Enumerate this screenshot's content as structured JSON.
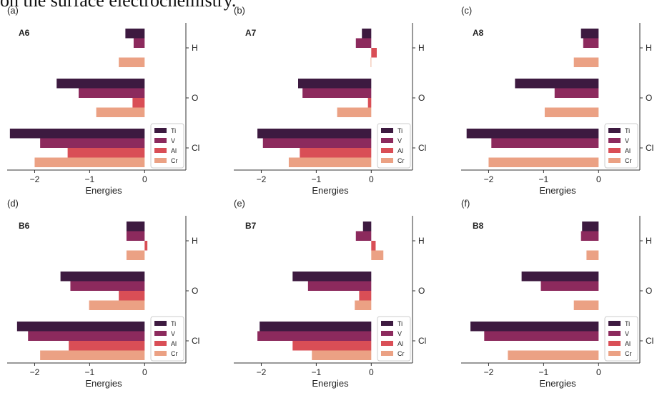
{
  "top_text": "on the surface electrochemistry.",
  "series_colors": {
    "Ti": "#3d1a40",
    "V": "#8c2a5d",
    "Al": "#d94e56",
    "Cr": "#eba184"
  },
  "chart_data": [
    {
      "type": "bar",
      "orientation": "horizontal",
      "panel_label": "(a)",
      "title": "A6",
      "xlabel": "Energies",
      "xlim": [
        -2.5,
        0.75
      ],
      "xticks": [
        "−2",
        "−1",
        "0"
      ],
      "categories": [
        "H",
        "O",
        "Cl"
      ],
      "series": [
        {
          "name": "Ti",
          "values": [
            -0.35,
            -1.6,
            -2.45
          ]
        },
        {
          "name": "V",
          "values": [
            -0.2,
            -1.2,
            -1.9
          ]
        },
        {
          "name": "Al",
          "values": [
            0.0,
            -0.22,
            -1.4
          ]
        },
        {
          "name": "Cr",
          "values": [
            -0.47,
            -0.88,
            -2.0
          ]
        }
      ],
      "legend": "lower-right"
    },
    {
      "type": "bar",
      "orientation": "horizontal",
      "panel_label": "(b)",
      "title": "A7",
      "xlabel": "Energies",
      "xlim": [
        -2.5,
        0.75
      ],
      "xticks": [
        "−2",
        "−1",
        "0"
      ],
      "categories": [
        "H",
        "O",
        "Cl"
      ],
      "series": [
        {
          "name": "Ti",
          "values": [
            -0.17,
            -1.33,
            -2.07
          ]
        },
        {
          "name": "V",
          "values": [
            -0.28,
            -1.25,
            -1.97
          ]
        },
        {
          "name": "Al",
          "values": [
            0.1,
            -0.06,
            -1.3
          ]
        },
        {
          "name": "Cr",
          "values": [
            -0.01,
            -0.62,
            -1.5
          ]
        }
      ],
      "legend": "lower-right"
    },
    {
      "type": "bar",
      "orientation": "horizontal",
      "panel_label": "(c)",
      "title": "A8",
      "xlabel": "Energies",
      "xlim": [
        -2.5,
        0.75
      ],
      "xticks": [
        "−2",
        "−1",
        "0"
      ],
      "categories": [
        "H",
        "O",
        "Cl"
      ],
      "series": [
        {
          "name": "Ti",
          "values": [
            -0.32,
            -1.52,
            -2.4
          ]
        },
        {
          "name": "V",
          "values": [
            -0.28,
            -0.8,
            -1.95
          ]
        },
        {
          "name": "Al",
          "values": [
            0.0,
            0.0,
            0.0
          ]
        },
        {
          "name": "Cr",
          "values": [
            -0.45,
            -0.98,
            -2.0
          ]
        }
      ],
      "legend": "lower-right"
    },
    {
      "type": "bar",
      "orientation": "horizontal",
      "panel_label": "(d)",
      "title": "B6",
      "xlabel": "Energies",
      "xlim": [
        -2.5,
        0.75
      ],
      "xticks": [
        "−2",
        "−1",
        "0"
      ],
      "categories": [
        "H",
        "O",
        "Cl"
      ],
      "series": [
        {
          "name": "Ti",
          "values": [
            -0.33,
            -1.53,
            -2.32
          ]
        },
        {
          "name": "V",
          "values": [
            -0.33,
            -1.35,
            -2.12
          ]
        },
        {
          "name": "Al",
          "values": [
            0.05,
            -0.47,
            -1.38
          ]
        },
        {
          "name": "Cr",
          "values": [
            -0.33,
            -1.01,
            -1.9
          ]
        }
      ],
      "legend": "lower-right"
    },
    {
      "type": "bar",
      "orientation": "horizontal",
      "panel_label": "(e)",
      "title": "B7",
      "xlabel": "Energies",
      "xlim": [
        -2.5,
        0.75
      ],
      "xticks": [
        "−2",
        "−1",
        "0"
      ],
      "categories": [
        "H",
        "O",
        "Cl"
      ],
      "series": [
        {
          "name": "Ti",
          "values": [
            -0.15,
            -1.43,
            -2.03
          ]
        },
        {
          "name": "V",
          "values": [
            -0.28,
            -1.15,
            -2.07
          ]
        },
        {
          "name": "Al",
          "values": [
            0.08,
            -0.22,
            -1.43
          ]
        },
        {
          "name": "Cr",
          "values": [
            0.22,
            -0.3,
            -1.08
          ]
        }
      ],
      "legend": "lower-right"
    },
    {
      "type": "bar",
      "orientation": "horizontal",
      "panel_label": "(f)",
      "title": "B8",
      "xlabel": "Energies",
      "xlim": [
        -2.5,
        0.75
      ],
      "xticks": [
        "−2",
        "−1",
        "0"
      ],
      "categories": [
        "H",
        "O",
        "Cl"
      ],
      "series": [
        {
          "name": "Ti",
          "values": [
            -0.3,
            -1.4,
            -2.33
          ]
        },
        {
          "name": "V",
          "values": [
            -0.32,
            -1.05,
            -2.08
          ]
        },
        {
          "name": "Al",
          "values": [
            0.0,
            0.0,
            0.0
          ]
        },
        {
          "name": "Cr",
          "values": [
            -0.22,
            -0.45,
            -1.65
          ]
        }
      ],
      "legend": "lower-right"
    }
  ]
}
